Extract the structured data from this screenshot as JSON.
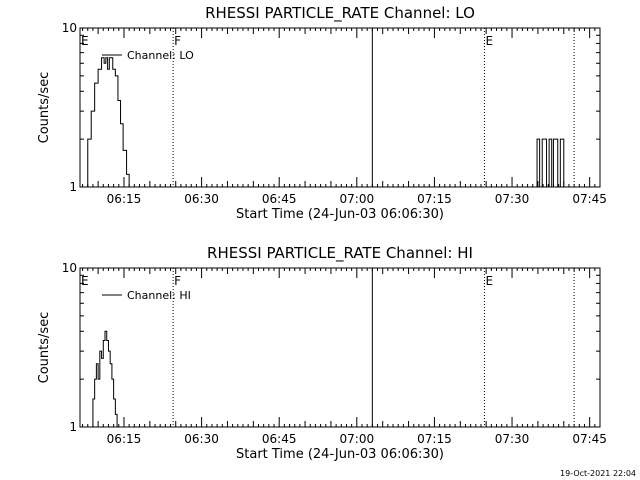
{
  "timestamp": "19-Oct-2021 22:04",
  "chart_data": [
    {
      "type": "line",
      "title": "RHESSI PARTICLE_RATE Channel: LO",
      "xlabel": "Start Time (24-Jun-03 06:06:30)",
      "ylabel": "Counts/sec",
      "yscale": "log",
      "ylim": [
        1,
        10
      ],
      "yticks": [
        "10",
        "1"
      ],
      "xlim": [
        "06:06:30",
        "07:47:00"
      ],
      "xticks": [
        "06:15",
        "06:30",
        "06:45",
        "07:00",
        "07:15",
        "07:30",
        "07:45"
      ],
      "legend": {
        "position": "top-left",
        "entries": [
          "Channel: LO"
        ]
      },
      "markers": [
        {
          "label": "E",
          "time": "06:06:30",
          "style": "none"
        },
        {
          "label": "F",
          "time": "06:24:30",
          "style": "dotted"
        },
        {
          "label": "",
          "time": "07:03:00",
          "style": "solid"
        },
        {
          "label": "E",
          "time": "07:24:40",
          "style": "dotted"
        },
        {
          "label": "",
          "time": "07:42:00",
          "style": "dotted"
        }
      ],
      "series": [
        {
          "x": [
            "06:07:20",
            "06:08:00",
            "06:08:40",
            "06:09:20",
            "06:10:00",
            "06:10:40",
            "06:11:10",
            "06:11:30",
            "06:11:50",
            "06:12:10",
            "06:12:30",
            "06:12:50",
            "06:13:20",
            "06:13:50",
            "06:14:20",
            "06:14:50",
            "06:15:30",
            "06:16:00",
            "07:34:10",
            "07:34:50",
            "07:35:20",
            "07:35:50",
            "07:36:10",
            "07:36:40",
            "07:37:10",
            "07:37:40",
            "07:38:00",
            "07:38:30",
            "07:38:50",
            "07:39:20",
            "07:39:40",
            "07:40:00"
          ],
          "y": [
            1,
            2,
            3,
            4.5,
            5.5,
            6.5,
            6,
            6.5,
            5.5,
            6.5,
            6.5,
            5.5,
            5,
            3.5,
            2.5,
            1.7,
            1.2,
            1,
            1,
            2,
            1,
            2,
            2,
            1,
            2,
            1,
            2,
            2,
            1,
            2,
            2,
            1
          ]
        }
      ]
    },
    {
      "type": "line",
      "title": "RHESSI PARTICLE_RATE Channel: HI",
      "xlabel": "Start Time (24-Jun-03 06:06:30)",
      "ylabel": "Counts/sec",
      "yscale": "log",
      "ylim": [
        1,
        10
      ],
      "yticks": [
        "10",
        "1"
      ],
      "xlim": [
        "06:06:30",
        "07:47:00"
      ],
      "xticks": [
        "06:15",
        "06:30",
        "06:45",
        "07:00",
        "07:15",
        "07:30",
        "07:45"
      ],
      "legend": {
        "position": "top-left",
        "entries": [
          "Channel: HI"
        ]
      },
      "markers": [
        {
          "label": "E",
          "time": "06:06:30",
          "style": "none"
        },
        {
          "label": "F",
          "time": "06:24:30",
          "style": "dotted"
        },
        {
          "label": "",
          "time": "07:03:00",
          "style": "solid"
        },
        {
          "label": "E",
          "time": "07:24:40",
          "style": "dotted"
        },
        {
          "label": "",
          "time": "07:42:00",
          "style": "dotted"
        }
      ],
      "series": [
        {
          "x": [
            "06:08:40",
            "06:09:00",
            "06:09:20",
            "06:09:40",
            "06:10:00",
            "06:10:20",
            "06:10:40",
            "06:11:00",
            "06:11:20",
            "06:11:40",
            "06:12:00",
            "06:12:20",
            "06:12:40",
            "06:13:00",
            "06:13:20",
            "06:13:40"
          ],
          "y": [
            1,
            1.5,
            2,
            2.5,
            2,
            3,
            2.7,
            3.5,
            4,
            3.5,
            3,
            2.5,
            2,
            1.5,
            1.2,
            1
          ]
        }
      ]
    }
  ]
}
